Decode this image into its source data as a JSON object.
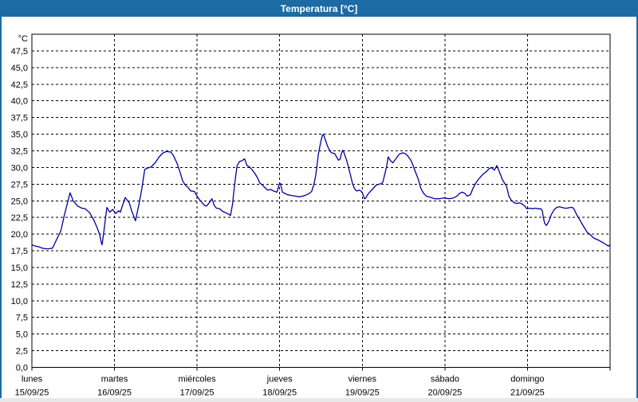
{
  "window": {
    "title": "Temperatura [°C]"
  },
  "colors": {
    "accent": "#1c6ba5",
    "background": "#ffffff",
    "grid": "#000000",
    "line": "#0000a0",
    "text": "#000000"
  },
  "chart_data": {
    "type": "line",
    "title": "Temperatura [°C]",
    "unit_label": "°C",
    "xlabel": "",
    "ylabel": "",
    "ylim": [
      0,
      50
    ],
    "xlim_hours": [
      0,
      168
    ],
    "grid": true,
    "legend": "none",
    "y_ticks": [
      {
        "value": 47.5,
        "label": "47,5"
      },
      {
        "value": 45.0,
        "label": "45,0"
      },
      {
        "value": 42.5,
        "label": "42,5"
      },
      {
        "value": 40.0,
        "label": "40,0"
      },
      {
        "value": 37.5,
        "label": "37,5"
      },
      {
        "value": 35.0,
        "label": "35,0"
      },
      {
        "value": 32.5,
        "label": "32,5"
      },
      {
        "value": 30.0,
        "label": "30,0"
      },
      {
        "value": 27.5,
        "label": "27,5"
      },
      {
        "value": 25.0,
        "label": "25,0"
      },
      {
        "value": 22.5,
        "label": "22,5"
      },
      {
        "value": 20.0,
        "label": "20,0"
      },
      {
        "value": 17.5,
        "label": "17,5"
      },
      {
        "value": 15.0,
        "label": "15,0"
      },
      {
        "value": 12.5,
        "label": "12,5"
      },
      {
        "value": 10.0,
        "label": "10,0"
      },
      {
        "value": 7.5,
        "label": "7,5"
      },
      {
        "value": 5.0,
        "label": "5,0"
      },
      {
        "value": 2.5,
        "label": "2,5"
      },
      {
        "value": 0.0,
        "label": "0,0"
      }
    ],
    "x_days": [
      {
        "name": "lunes",
        "date": "15/09/25"
      },
      {
        "name": "martes",
        "date": "16/09/25"
      },
      {
        "name": "miércoles",
        "date": "17/09/25"
      },
      {
        "name": "jueves",
        "date": "18/09/25"
      },
      {
        "name": "viernes",
        "date": "19/09/25"
      },
      {
        "name": "sábado",
        "date": "20/09/25"
      },
      {
        "name": "domingo",
        "date": "21/09/25"
      }
    ],
    "series": [
      {
        "name": "Temperatura",
        "color": "#0000a0",
        "points": [
          [
            0,
            18.4
          ],
          [
            1,
            18.2
          ],
          [
            2,
            18.1
          ],
          [
            3,
            17.9
          ],
          [
            4,
            17.8
          ],
          [
            5,
            17.8
          ],
          [
            6,
            17.9
          ],
          [
            7,
            19.0
          ],
          [
            8.4,
            20.5
          ],
          [
            9.5,
            23.0
          ],
          [
            10.3,
            24.6
          ],
          [
            11.1,
            26.2
          ],
          [
            12,
            25.0
          ],
          [
            13.3,
            24.2
          ],
          [
            14.5,
            23.9
          ],
          [
            15.5,
            23.8
          ],
          [
            16.8,
            23.2
          ],
          [
            18,
            22.1
          ],
          [
            19,
            20.9
          ],
          [
            19.7,
            19.9
          ],
          [
            20.1,
            18.9
          ],
          [
            20.4,
            18.4
          ],
          [
            21,
            20.7
          ],
          [
            21.4,
            22.5
          ],
          [
            21.8,
            24.0
          ],
          [
            22.6,
            23.3
          ],
          [
            23.5,
            23.7
          ],
          [
            24.3,
            23.1
          ],
          [
            25.2,
            23.5
          ],
          [
            25.7,
            23.3
          ],
          [
            27.1,
            25.5
          ],
          [
            28.3,
            24.7
          ],
          [
            29,
            23.5
          ],
          [
            30.1,
            22.0
          ],
          [
            31.2,
            24.7
          ],
          [
            31.9,
            26.7
          ],
          [
            32.8,
            29.7
          ],
          [
            33.5,
            29.9
          ],
          [
            34.7,
            30.1
          ],
          [
            35.8,
            30.7
          ],
          [
            37,
            31.6
          ],
          [
            38.1,
            32.2
          ],
          [
            39.2,
            32.4
          ],
          [
            40.4,
            32.3
          ],
          [
            41.1,
            31.8
          ],
          [
            42.2,
            30.6
          ],
          [
            43.1,
            29.2
          ],
          [
            43.8,
            28.0
          ],
          [
            44.5,
            27.4
          ],
          [
            45.4,
            27.0
          ],
          [
            46.1,
            26.5
          ],
          [
            47.2,
            26.4
          ],
          [
            48,
            25.7
          ],
          [
            48.8,
            25.1
          ],
          [
            49.5,
            24.7
          ],
          [
            50.2,
            24.3
          ],
          [
            50.7,
            24.2
          ],
          [
            51.4,
            24.6
          ],
          [
            52.3,
            25.3
          ],
          [
            53,
            24.3
          ],
          [
            53.6,
            23.9
          ],
          [
            54.6,
            23.8
          ],
          [
            55.2,
            23.5
          ],
          [
            55.9,
            23.3
          ],
          [
            56.8,
            23.1
          ],
          [
            57.7,
            22.8
          ],
          [
            58.3,
            24.5
          ],
          [
            58.7,
            26.5
          ],
          [
            59.1,
            28.2
          ],
          [
            59.6,
            30.2
          ],
          [
            60.3,
            30.9
          ],
          [
            61,
            31.0
          ],
          [
            61.8,
            31.3
          ],
          [
            62.5,
            30.3
          ],
          [
            63.2,
            30.1
          ],
          [
            63.9,
            29.7
          ],
          [
            64.8,
            29.1
          ],
          [
            65.5,
            28.5
          ],
          [
            66.2,
            27.7
          ],
          [
            67.1,
            27.3
          ],
          [
            67.8,
            26.9
          ],
          [
            68.5,
            26.6
          ],
          [
            69.4,
            26.7
          ],
          [
            70.1,
            26.5
          ],
          [
            71.2,
            26.3
          ],
          [
            71.8,
            27.4
          ],
          [
            72.2,
            27.6
          ],
          [
            72.8,
            26.3
          ],
          [
            73.5,
            26.1
          ],
          [
            74.3,
            25.9
          ],
          [
            75.5,
            25.8
          ],
          [
            76.6,
            25.7
          ],
          [
            77.6,
            25.6
          ],
          [
            78.7,
            25.7
          ],
          [
            79.8,
            25.9
          ],
          [
            80.6,
            26.1
          ],
          [
            81.3,
            26.4
          ],
          [
            81.9,
            27.4
          ],
          [
            82.4,
            28.6
          ],
          [
            82.8,
            30.1
          ],
          [
            83.2,
            31.8
          ],
          [
            83.6,
            33.0
          ],
          [
            84,
            34.0
          ],
          [
            84.4,
            34.8
          ],
          [
            84.7,
            35.0
          ],
          [
            85.1,
            34.4
          ],
          [
            85.5,
            33.8
          ],
          [
            85.9,
            33.2
          ],
          [
            86.3,
            32.8
          ],
          [
            86.7,
            32.4
          ],
          [
            87.1,
            32.2
          ],
          [
            87.9,
            32.1
          ],
          [
            88.3,
            31.8
          ],
          [
            88.7,
            31.4
          ],
          [
            89.1,
            31.1
          ],
          [
            89.5,
            31.2
          ],
          [
            89.9,
            32.0
          ],
          [
            90.3,
            32.6
          ],
          [
            90.7,
            32.2
          ],
          [
            91.1,
            31.6
          ],
          [
            91.5,
            31.0
          ],
          [
            91.9,
            30.2
          ],
          [
            92.3,
            29.4
          ],
          [
            92.7,
            28.6
          ],
          [
            93.1,
            27.7
          ],
          [
            93.5,
            27.1
          ],
          [
            93.9,
            26.7
          ],
          [
            94.3,
            26.5
          ],
          [
            94.7,
            26.5
          ],
          [
            95.1,
            26.6
          ],
          [
            95.5,
            26.5
          ],
          [
            95.9,
            26.3
          ],
          [
            96.3,
            25.8
          ],
          [
            96.6,
            25.3
          ],
          [
            97,
            25.4
          ],
          [
            97.4,
            25.8
          ],
          [
            97.8,
            26.1
          ],
          [
            98.5,
            26.5
          ],
          [
            99.4,
            27.0
          ],
          [
            100.1,
            27.4
          ],
          [
            101,
            27.5
          ],
          [
            101.9,
            27.7
          ],
          [
            102.3,
            28.5
          ],
          [
            103.1,
            30.2
          ],
          [
            103.5,
            31.6
          ],
          [
            104.2,
            31.0
          ],
          [
            104.9,
            30.7
          ],
          [
            105.6,
            31.2
          ],
          [
            106.7,
            32.0
          ],
          [
            107.7,
            32.2
          ],
          [
            108.4,
            32.1
          ],
          [
            109.1,
            31.8
          ],
          [
            110,
            31.2
          ],
          [
            110.7,
            30.4
          ],
          [
            111.4,
            29.4
          ],
          [
            112.3,
            28.2
          ],
          [
            113,
            26.9
          ],
          [
            113.7,
            26.2
          ],
          [
            114.6,
            25.7
          ],
          [
            115.3,
            25.6
          ],
          [
            116,
            25.5
          ],
          [
            117,
            25.3
          ],
          [
            118.4,
            25.3
          ],
          [
            119.3,
            25.4
          ],
          [
            120,
            25.4
          ],
          [
            121.2,
            25.3
          ],
          [
            122.3,
            25.4
          ],
          [
            123.5,
            25.7
          ],
          [
            124.2,
            26.1
          ],
          [
            125.1,
            26.3
          ],
          [
            125.8,
            26.1
          ],
          [
            126.5,
            25.7
          ],
          [
            127.4,
            25.9
          ],
          [
            128.1,
            26.8
          ],
          [
            128.8,
            27.5
          ],
          [
            129.7,
            28.2
          ],
          [
            130.4,
            28.6
          ],
          [
            131.1,
            29.0
          ],
          [
            132.1,
            29.4
          ],
          [
            132.8,
            29.8
          ],
          [
            133.5,
            30.0
          ],
          [
            134.4,
            29.6
          ],
          [
            135.1,
            30.3
          ],
          [
            135.8,
            29.4
          ],
          [
            136.7,
            28.2
          ],
          [
            137.4,
            27.6
          ],
          [
            137.9,
            27.2
          ],
          [
            138.6,
            25.7
          ],
          [
            139.3,
            25.1
          ],
          [
            140.2,
            24.7
          ],
          [
            140.9,
            24.6
          ],
          [
            141.6,
            24.7
          ],
          [
            142.5,
            24.5
          ],
          [
            143.2,
            24.2
          ],
          [
            143.8,
            23.8
          ],
          [
            144.5,
            23.9
          ],
          [
            145.6,
            23.8
          ],
          [
            146.2,
            23.9
          ],
          [
            147.2,
            23.8
          ],
          [
            147.9,
            23.8
          ],
          [
            148.3,
            23.5
          ],
          [
            148.6,
            22.5
          ],
          [
            149,
            21.6
          ],
          [
            149.5,
            21.3
          ],
          [
            150.2,
            21.9
          ],
          [
            150.9,
            22.9
          ],
          [
            151.8,
            23.7
          ],
          [
            152.5,
            24.0
          ],
          [
            153.2,
            24.1
          ],
          [
            154.1,
            24.0
          ],
          [
            154.8,
            23.9
          ],
          [
            155.5,
            23.9
          ],
          [
            156.4,
            24.0
          ],
          [
            157.1,
            24.0
          ],
          [
            157.6,
            23.7
          ],
          [
            158.3,
            22.9
          ],
          [
            159,
            22.3
          ],
          [
            159.9,
            21.5
          ],
          [
            160.6,
            20.9
          ],
          [
            161.3,
            20.3
          ],
          [
            162.3,
            19.9
          ],
          [
            163,
            19.5
          ],
          [
            163.7,
            19.3
          ],
          [
            164.6,
            19.1
          ],
          [
            165.3,
            18.9
          ],
          [
            166,
            18.7
          ],
          [
            166.9,
            18.4
          ],
          [
            167.5,
            18.2
          ],
          [
            168,
            18.4
          ]
        ]
      }
    ]
  }
}
